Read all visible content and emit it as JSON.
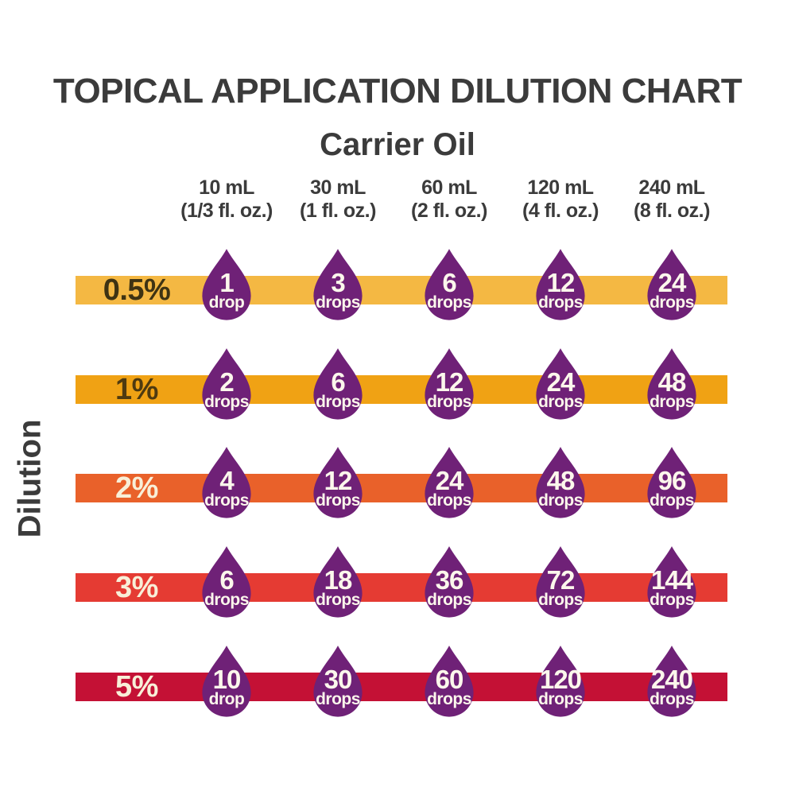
{
  "title": "TOPICAL APPLICATION DILUTION CHART",
  "carrier_oil_heading": "Carrier Oil",
  "dilution_axis_label": "Dilution",
  "colors": {
    "background": "#FFFFFF",
    "heading_text": "#3B3B3B",
    "droplet": "#6F2177",
    "droplet_text": "#FCF7EC",
    "bar_0_5_percent": "#F4B843",
    "bar_1_percent": "#F0A214",
    "bar_2_percent": "#E9612A",
    "bar_3_percent": "#E53B33",
    "bar_5_percent": "#C41135"
  },
  "chart_data": {
    "type": "table",
    "title": "TOPICAL APPLICATION DILUTION CHART",
    "x_axis_title": "Carrier Oil",
    "y_axis_title": "Dilution",
    "columns": [
      {
        "volume_ml": "10 mL",
        "volume_oz": "(1/3 fl. oz.)"
      },
      {
        "volume_ml": "30 mL",
        "volume_oz": "(1 fl. oz.)"
      },
      {
        "volume_ml": "60 mL",
        "volume_oz": "(2 fl. oz.)"
      },
      {
        "volume_ml": "120 mL",
        "volume_oz": "(4 fl. oz.)"
      },
      {
        "volume_ml": "240 mL",
        "volume_oz": "(8 fl. oz.)"
      }
    ],
    "rows": [
      {
        "dilution": "0.5%",
        "bar_color": "#F4B843",
        "label_color": "#3E3313",
        "drops": [
          {
            "value": "1",
            "unit": "drop"
          },
          {
            "value": "3",
            "unit": "drops"
          },
          {
            "value": "6",
            "unit": "drops"
          },
          {
            "value": "12",
            "unit": "drops"
          },
          {
            "value": "24",
            "unit": "drops"
          }
        ]
      },
      {
        "dilution": "1%",
        "bar_color": "#F0A214",
        "label_color": "#4E3A10",
        "drops": [
          {
            "value": "2",
            "unit": "drops"
          },
          {
            "value": "6",
            "unit": "drops"
          },
          {
            "value": "12",
            "unit": "drops"
          },
          {
            "value": "24",
            "unit": "drops"
          },
          {
            "value": "48",
            "unit": "drops"
          }
        ]
      },
      {
        "dilution": "2%",
        "bar_color": "#E9612A",
        "label_color": "#F8EFD8",
        "drops": [
          {
            "value": "4",
            "unit": "drops"
          },
          {
            "value": "12",
            "unit": "drops"
          },
          {
            "value": "24",
            "unit": "drops"
          },
          {
            "value": "48",
            "unit": "drops"
          },
          {
            "value": "96",
            "unit": "drops"
          }
        ]
      },
      {
        "dilution": "3%",
        "bar_color": "#E53B33",
        "label_color": "#F8EFD8",
        "drops": [
          {
            "value": "6",
            "unit": "drops"
          },
          {
            "value": "18",
            "unit": "drops"
          },
          {
            "value": "36",
            "unit": "drops"
          },
          {
            "value": "72",
            "unit": "drops"
          },
          {
            "value": "144",
            "unit": "drops"
          }
        ]
      },
      {
        "dilution": "5%",
        "bar_color": "#C41135",
        "label_color": "#F8EFD8",
        "drops": [
          {
            "value": "10",
            "unit": "drop"
          },
          {
            "value": "30",
            "unit": "drops"
          },
          {
            "value": "60",
            "unit": "drops"
          },
          {
            "value": "120",
            "unit": "drops"
          },
          {
            "value": "240",
            "unit": "drops"
          }
        ]
      }
    ]
  }
}
